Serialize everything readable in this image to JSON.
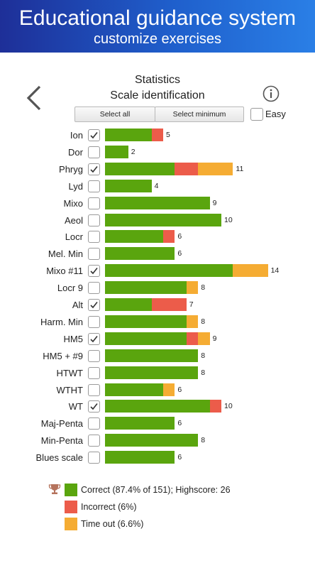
{
  "banner": {
    "title": "Educational guidance system",
    "subtitle": "customize exercises"
  },
  "header": {
    "title": "Statistics",
    "subtitle": "Scale identification"
  },
  "controls": {
    "select_all": "Select all",
    "select_minimum": "Select minimum",
    "easy_label": "Easy",
    "easy_checked": false
  },
  "icons": {
    "back": "chevron-left-icon",
    "info": "info-icon",
    "trophy": "trophy-icon",
    "check": "checkmark-icon"
  },
  "colors": {
    "correct": "#5aa50e",
    "incorrect": "#ec5c4a",
    "timeout": "#f5ac33"
  },
  "chart_data": {
    "type": "bar",
    "categories": [
      "Ion",
      "Dor",
      "Phryg",
      "Lyd",
      "Mixo",
      "Aeol",
      "Locr",
      "Mel. Min",
      "Mixo #11",
      "Locr 9",
      "Alt",
      "Harm. Min",
      "HM5",
      "HM5 + #9",
      "HTWT",
      "WTHT",
      "WT",
      "Maj-Penta",
      "Min-Penta",
      "Blues scale"
    ],
    "selected": [
      true,
      false,
      true,
      false,
      false,
      false,
      false,
      false,
      true,
      false,
      true,
      false,
      true,
      false,
      false,
      false,
      true,
      false,
      false,
      false
    ],
    "series": [
      {
        "name": "Correct",
        "values": [
          4,
          2,
          6,
          4,
          9,
          10,
          5,
          6,
          11,
          7,
          4,
          7,
          7,
          8,
          8,
          5,
          9,
          6,
          8,
          6
        ]
      },
      {
        "name": "Incorrect",
        "values": [
          1,
          0,
          2,
          0,
          0,
          0,
          1,
          0,
          0,
          0,
          3,
          0,
          1,
          0,
          0,
          0,
          1,
          0,
          0,
          0
        ]
      },
      {
        "name": "Time out",
        "values": [
          0,
          0,
          3,
          0,
          0,
          0,
          0,
          0,
          3,
          1,
          0,
          1,
          1,
          0,
          0,
          1,
          0,
          0,
          0,
          0
        ]
      }
    ],
    "totals": [
      5,
      2,
      11,
      4,
      9,
      10,
      6,
      6,
      14,
      8,
      7,
      8,
      9,
      8,
      8,
      6,
      10,
      6,
      8,
      6
    ]
  },
  "legend": {
    "correct": "Correct (87.4% of 151); Highscore: 26",
    "incorrect": "Incorrect (6%)",
    "timeout": "Time out (6.6%)"
  }
}
